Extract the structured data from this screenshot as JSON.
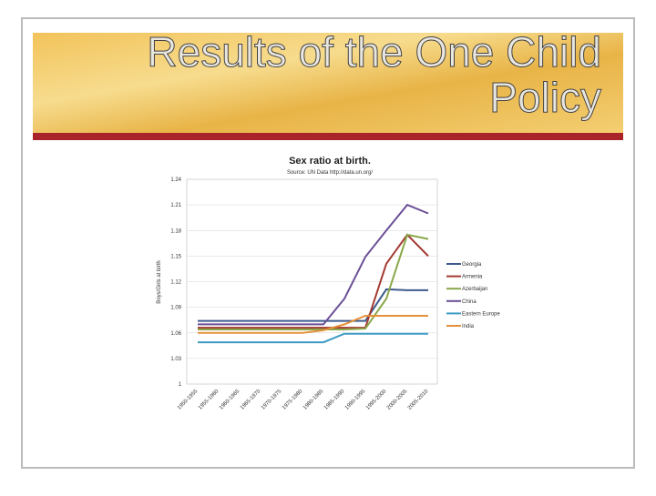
{
  "slide": {
    "title": "Results of the One Child Policy"
  },
  "chart_data": {
    "type": "line",
    "title": "Sex ratio at birth.",
    "subtitle": "Source: UN Data http://data.un.org/",
    "y_label": "Boys/Girls at birth",
    "categories": [
      "1950-1955",
      "1955-1960",
      "1960-1965",
      "1965-1970",
      "1970-1975",
      "1975-1980",
      "1980-1985",
      "1985-1990",
      "1990-1995",
      "1995-2000",
      "2000-2005",
      "2005-2010"
    ],
    "ylim": [
      1,
      1.24
    ],
    "yticks": [
      1,
      1.03,
      1.06,
      1.09,
      1.12,
      1.15,
      1.18,
      1.21,
      1.24
    ],
    "grid": true,
    "legend": "right",
    "series": [
      {
        "name": "Georgia",
        "color": "#3c5a8c",
        "values": [
          1.074,
          1.074,
          1.074,
          1.074,
          1.074,
          1.074,
          1.074,
          1.074,
          1.074,
          1.111,
          1.11,
          1.11
        ]
      },
      {
        "name": "Armenia",
        "color": "#a33a32",
        "values": [
          1.066,
          1.066,
          1.066,
          1.066,
          1.066,
          1.066,
          1.066,
          1.066,
          1.066,
          1.141,
          1.175,
          1.15
        ]
      },
      {
        "name": "Azerbaijan",
        "color": "#8aa74a",
        "values": [
          1.064,
          1.064,
          1.064,
          1.064,
          1.064,
          1.064,
          1.064,
          1.064,
          1.065,
          1.1,
          1.175,
          1.17
        ]
      },
      {
        "name": "China",
        "color": "#6b4f96",
        "values": [
          1.07,
          1.07,
          1.07,
          1.07,
          1.07,
          1.07,
          1.07,
          1.1,
          1.149,
          1.18,
          1.21,
          1.2
        ]
      },
      {
        "name": "Eastern Europe",
        "color": "#3e9bc3",
        "values": [
          1.049,
          1.049,
          1.049,
          1.049,
          1.049,
          1.049,
          1.049,
          1.059,
          1.059,
          1.059,
          1.059,
          1.059
        ]
      },
      {
        "name": "India",
        "color": "#e69138",
        "values": [
          1.06,
          1.06,
          1.06,
          1.06,
          1.06,
          1.06,
          1.063,
          1.07,
          1.08,
          1.08,
          1.08,
          1.08
        ]
      }
    ]
  }
}
